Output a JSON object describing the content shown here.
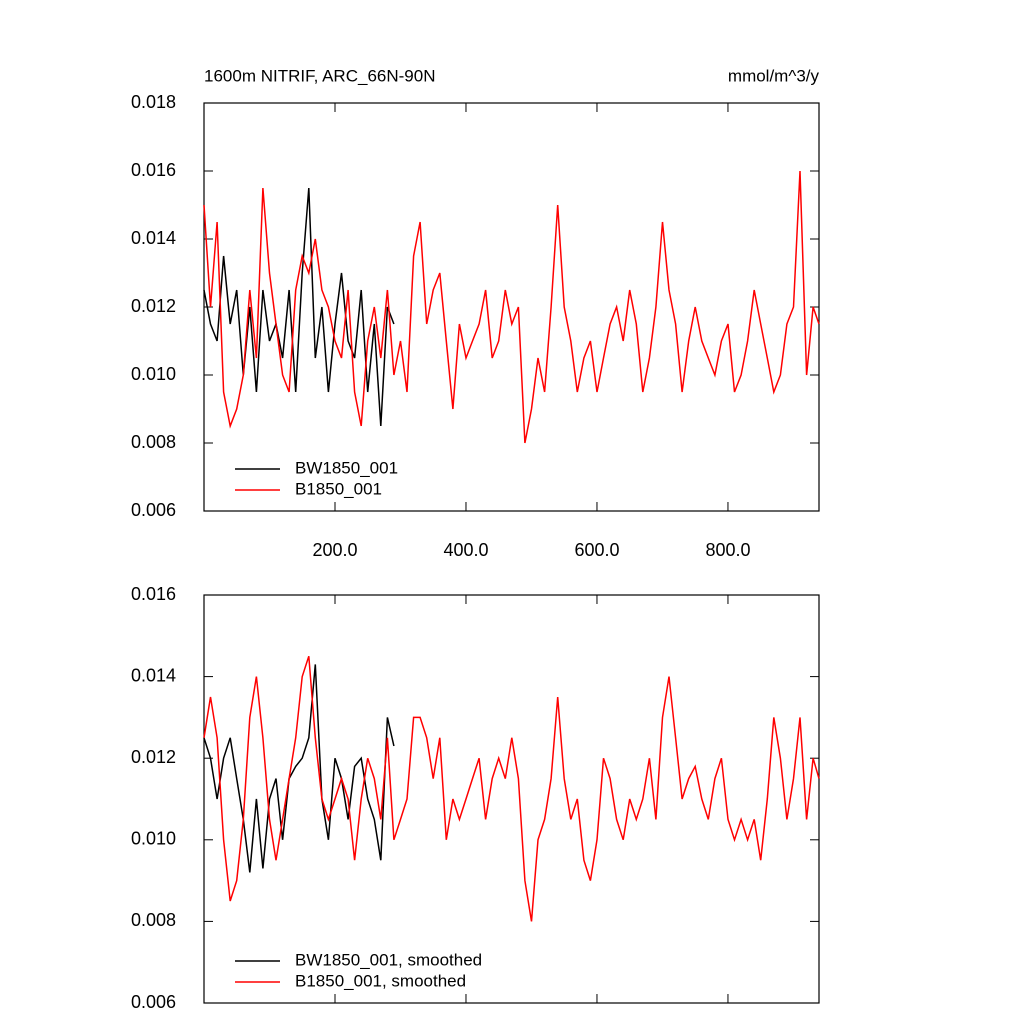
{
  "chart_data": [
    {
      "type": "line",
      "title": "1600m NITRIF, ARC_66N-90N",
      "units": "mmol/m^3/y",
      "xlim": [
        0,
        939
      ],
      "ylim": [
        0.006,
        0.018
      ],
      "xticks": [
        {
          "value": 200,
          "label": "200.0"
        },
        {
          "value": 400,
          "label": "400.0"
        },
        {
          "value": 600,
          "label": "600.0"
        },
        {
          "value": 800,
          "label": "800.0"
        }
      ],
      "yticks": [
        {
          "value": 0.006,
          "label": "0.006"
        },
        {
          "value": 0.008,
          "label": "0.008"
        },
        {
          "value": 0.01,
          "label": "0.010"
        },
        {
          "value": 0.012,
          "label": "0.012"
        },
        {
          "value": 0.014,
          "label": "0.014"
        },
        {
          "value": 0.016,
          "label": "0.016"
        },
        {
          "value": 0.018,
          "label": "0.018"
        }
      ],
      "legend": "lower left",
      "series": [
        {
          "name": "BW1850_001",
          "color": "#000000",
          "x": [
            0,
            10,
            20,
            30,
            40,
            50,
            60,
            70,
            80,
            90,
            100,
            110,
            120,
            130,
            140,
            150,
            160,
            170,
            180,
            190,
            200,
            210,
            220,
            230,
            240,
            250,
            260,
            270,
            280,
            290
          ],
          "values": [
            0.0125,
            0.0115,
            0.011,
            0.0135,
            0.0115,
            0.0125,
            0.01,
            0.012,
            0.0095,
            0.0125,
            0.011,
            0.0115,
            0.0105,
            0.0125,
            0.0095,
            0.013,
            0.0155,
            0.0105,
            0.012,
            0.0095,
            0.0115,
            0.013,
            0.011,
            0.0105,
            0.0125,
            0.0095,
            0.0115,
            0.0085,
            0.012,
            0.0115
          ]
        },
        {
          "name": "B1850_001",
          "color": "#ff0000",
          "x": [
            0,
            10,
            20,
            30,
            40,
            50,
            60,
            70,
            80,
            90,
            100,
            110,
            120,
            130,
            140,
            150,
            160,
            170,
            180,
            190,
            200,
            210,
            220,
            230,
            240,
            250,
            260,
            270,
            280,
            290,
            300,
            310,
            320,
            330,
            340,
            350,
            360,
            370,
            380,
            390,
            400,
            410,
            420,
            430,
            440,
            450,
            460,
            470,
            480,
            490,
            500,
            510,
            520,
            530,
            540,
            550,
            560,
            570,
            580,
            590,
            600,
            610,
            620,
            630,
            640,
            650,
            660,
            670,
            680,
            690,
            700,
            710,
            720,
            730,
            740,
            750,
            760,
            770,
            780,
            790,
            800,
            810,
            820,
            830,
            840,
            850,
            860,
            870,
            880,
            890,
            900,
            910,
            920,
            930,
            939
          ],
          "values": [
            0.015,
            0.012,
            0.0145,
            0.0095,
            0.0085,
            0.009,
            0.01,
            0.0125,
            0.0105,
            0.0155,
            0.013,
            0.0115,
            0.01,
            0.0095,
            0.0125,
            0.0135,
            0.013,
            0.014,
            0.0125,
            0.012,
            0.011,
            0.0105,
            0.0125,
            0.0095,
            0.0085,
            0.011,
            0.012,
            0.0105,
            0.0125,
            0.01,
            0.011,
            0.0095,
            0.0135,
            0.0145,
            0.0115,
            0.0125,
            0.013,
            0.011,
            0.009,
            0.0115,
            0.0105,
            0.011,
            0.0115,
            0.0125,
            0.0105,
            0.011,
            0.0125,
            0.0115,
            0.012,
            0.008,
            0.009,
            0.0105,
            0.0095,
            0.012,
            0.015,
            0.012,
            0.011,
            0.0095,
            0.0105,
            0.011,
            0.0095,
            0.0105,
            0.0115,
            0.012,
            0.011,
            0.0125,
            0.0115,
            0.0095,
            0.0105,
            0.012,
            0.0145,
            0.0125,
            0.0115,
            0.0095,
            0.011,
            0.012,
            0.011,
            0.0105,
            0.01,
            0.011,
            0.0115,
            0.0095,
            0.01,
            0.011,
            0.0125,
            0.0115,
            0.0105,
            0.0095,
            0.01,
            0.0115,
            0.012,
            0.016,
            0.01,
            0.012,
            0.0115
          ]
        }
      ]
    },
    {
      "type": "line",
      "xlim": [
        0,
        939
      ],
      "ylim": [
        0.006,
        0.016
      ],
      "xticks": [
        200,
        400,
        600,
        800
      ],
      "yticks": [
        {
          "value": 0.006,
          "label": "0.006"
        },
        {
          "value": 0.008,
          "label": "0.008"
        },
        {
          "value": 0.01,
          "label": "0.010"
        },
        {
          "value": 0.012,
          "label": "0.012"
        },
        {
          "value": 0.014,
          "label": "0.014"
        },
        {
          "value": 0.016,
          "label": "0.016"
        }
      ],
      "legend": "lower left",
      "series": [
        {
          "name": "BW1850_001, smoothed",
          "color": "#000000",
          "x": [
            0,
            10,
            20,
            30,
            40,
            50,
            60,
            70,
            80,
            90,
            100,
            110,
            120,
            130,
            140,
            150,
            160,
            170,
            180,
            190,
            200,
            210,
            220,
            230,
            240,
            250,
            260,
            270,
            280,
            290
          ],
          "values": [
            0.0125,
            0.012,
            0.011,
            0.012,
            0.0125,
            0.0115,
            0.0105,
            0.0092,
            0.011,
            0.0093,
            0.011,
            0.0115,
            0.01,
            0.0115,
            0.0118,
            0.012,
            0.0125,
            0.0143,
            0.011,
            0.01,
            0.012,
            0.0115,
            0.0105,
            0.0118,
            0.012,
            0.011,
            0.0105,
            0.0095,
            0.013,
            0.0123
          ]
        },
        {
          "name": "B1850_001, smoothed",
          "color": "#ff0000",
          "x": [
            0,
            10,
            20,
            30,
            40,
            50,
            60,
            70,
            80,
            90,
            100,
            110,
            120,
            130,
            140,
            150,
            160,
            170,
            180,
            190,
            200,
            210,
            220,
            230,
            240,
            250,
            260,
            270,
            280,
            290,
            300,
            310,
            320,
            330,
            340,
            350,
            360,
            370,
            380,
            390,
            400,
            410,
            420,
            430,
            440,
            450,
            460,
            470,
            480,
            490,
            500,
            510,
            520,
            530,
            540,
            550,
            560,
            570,
            580,
            590,
            600,
            610,
            620,
            630,
            640,
            650,
            660,
            670,
            680,
            690,
            700,
            710,
            720,
            730,
            740,
            750,
            760,
            770,
            780,
            790,
            800,
            810,
            820,
            830,
            840,
            850,
            860,
            870,
            880,
            890,
            900,
            910,
            920,
            930,
            939
          ],
          "values": [
            0.0125,
            0.0135,
            0.0125,
            0.01,
            0.0085,
            0.009,
            0.0105,
            0.013,
            0.014,
            0.0125,
            0.0105,
            0.0095,
            0.0105,
            0.0115,
            0.0125,
            0.014,
            0.0145,
            0.0125,
            0.011,
            0.0105,
            0.011,
            0.0115,
            0.011,
            0.0095,
            0.011,
            0.012,
            0.0115,
            0.0105,
            0.0125,
            0.01,
            0.0105,
            0.011,
            0.013,
            0.013,
            0.0125,
            0.0115,
            0.0125,
            0.01,
            0.011,
            0.0105,
            0.011,
            0.0115,
            0.012,
            0.0105,
            0.0115,
            0.012,
            0.0115,
            0.0125,
            0.0115,
            0.009,
            0.008,
            0.01,
            0.0105,
            0.0115,
            0.0135,
            0.0115,
            0.0105,
            0.011,
            0.0095,
            0.009,
            0.01,
            0.012,
            0.0115,
            0.0105,
            0.01,
            0.011,
            0.0105,
            0.011,
            0.012,
            0.0105,
            0.013,
            0.014,
            0.0125,
            0.011,
            0.0115,
            0.0118,
            0.011,
            0.0105,
            0.0115,
            0.012,
            0.0105,
            0.01,
            0.0105,
            0.01,
            0.0105,
            0.0095,
            0.011,
            0.013,
            0.012,
            0.0105,
            0.0115,
            0.013,
            0.0105,
            0.012,
            0.0115
          ]
        }
      ]
    }
  ]
}
